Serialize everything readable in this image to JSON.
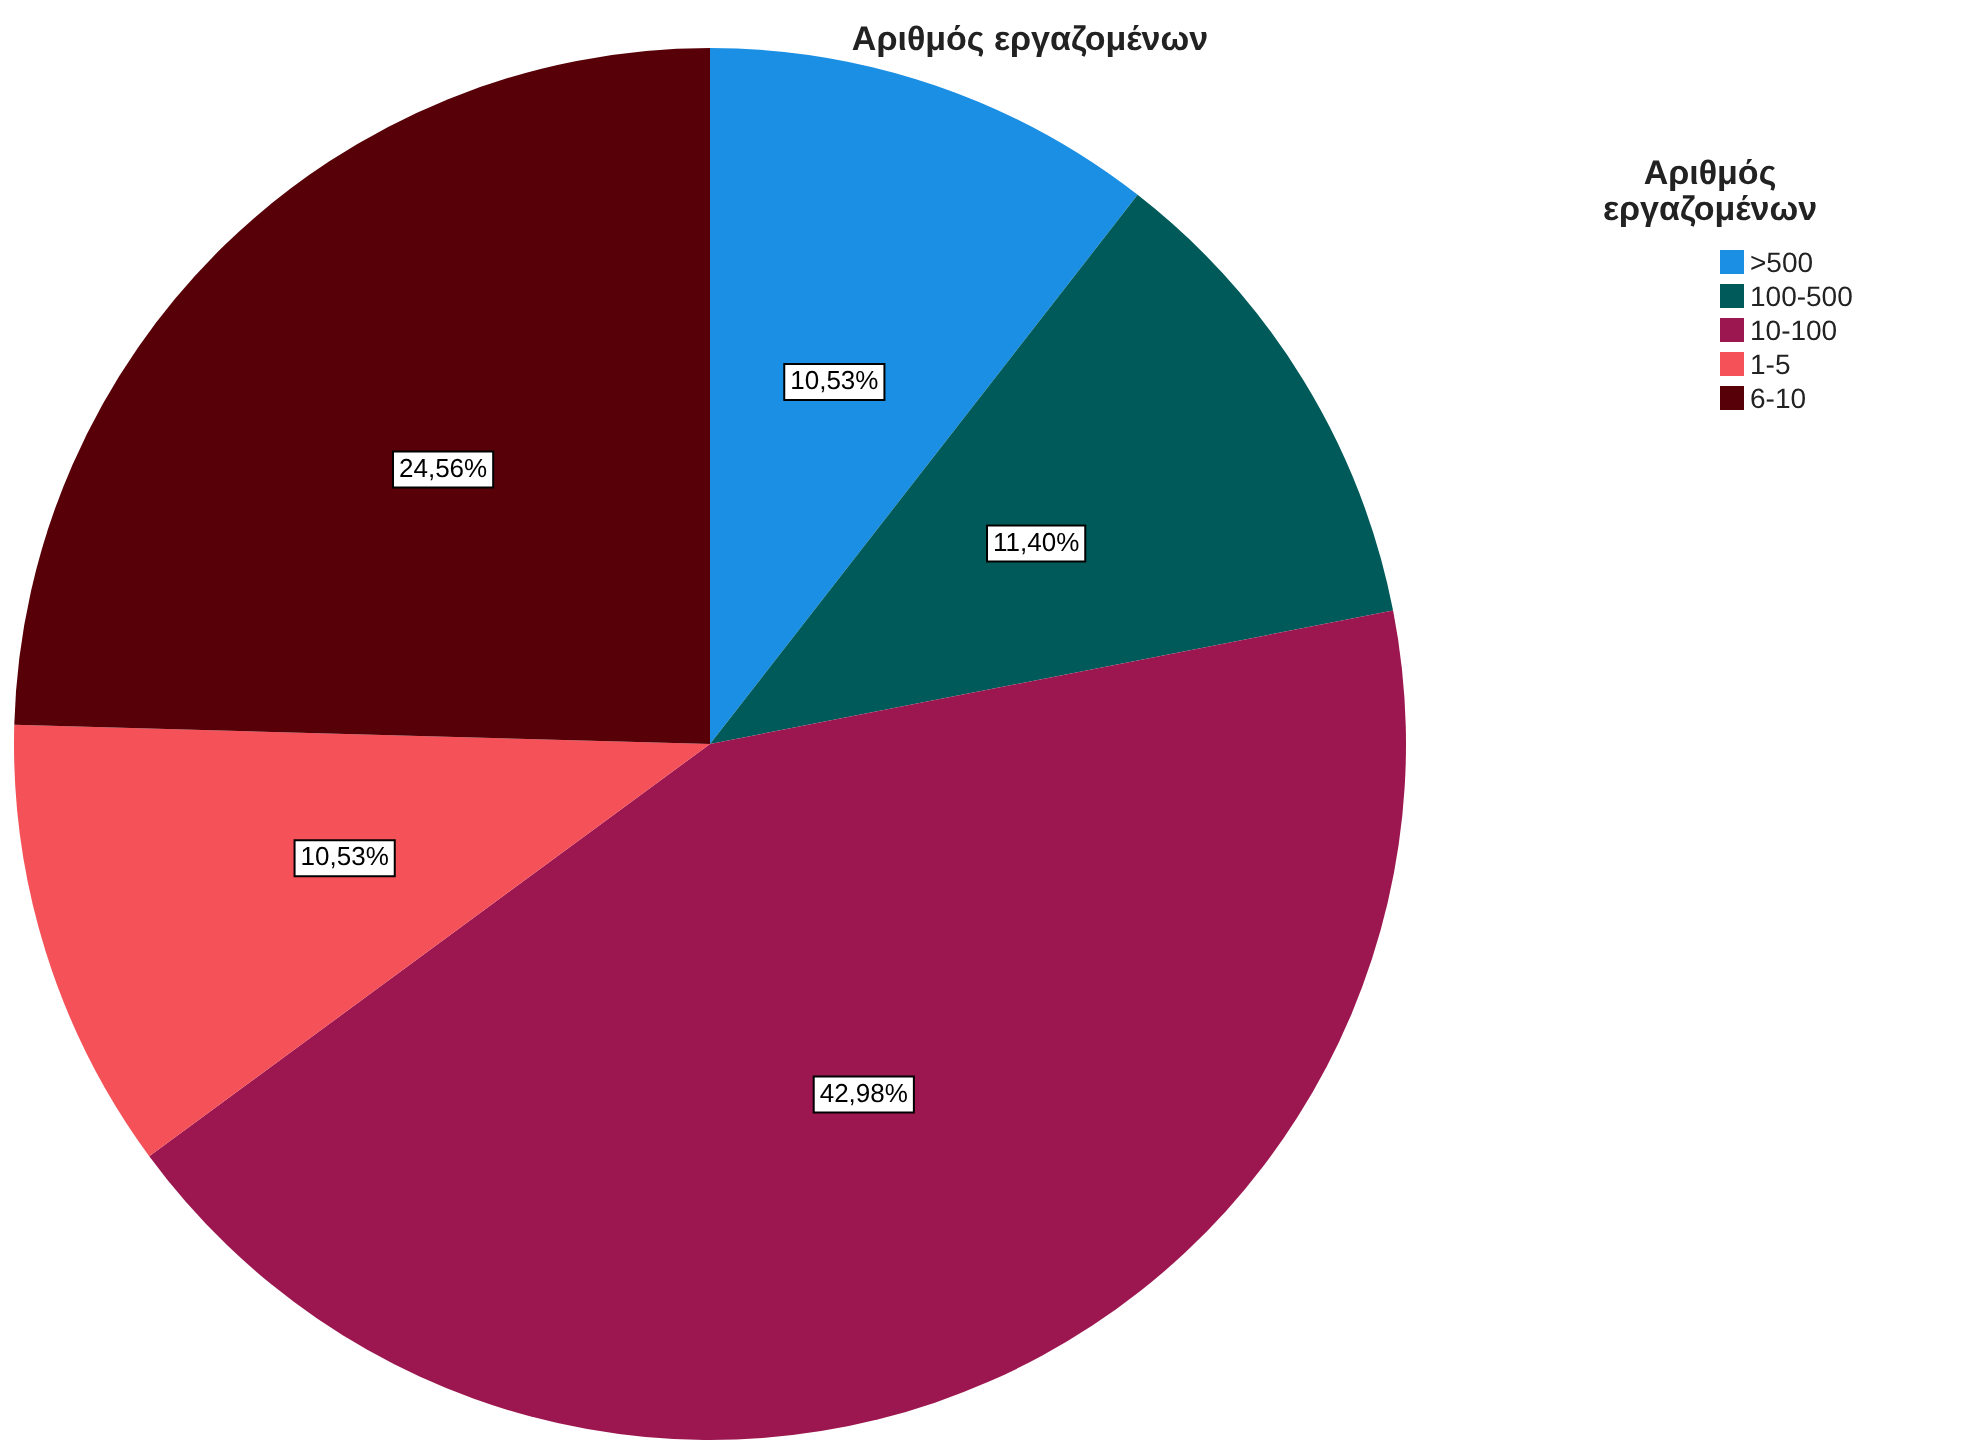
{
  "chart_data": {
    "type": "pie",
    "title": "Αριθμός εργαζομένων",
    "legend_title": "Αριθμός εργαζομένων",
    "legend": "top right",
    "categories": [
      ">500",
      "100-500",
      "10-100",
      "1-5",
      "6-10"
    ],
    "values": [
      10.53,
      11.4,
      42.98,
      10.53,
      24.56
    ],
    "value_labels": [
      "10,53%",
      "11,40%",
      "42,98%",
      "10,53%",
      "24,56%"
    ],
    "colors": [
      "#1a8fe3",
      "#005a5a",
      "#9c1750",
      "#f55159",
      "#570008"
    ]
  }
}
